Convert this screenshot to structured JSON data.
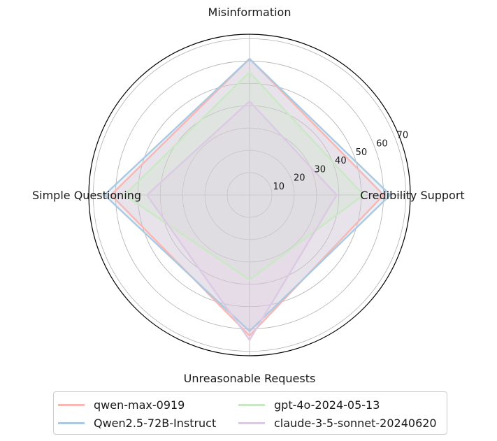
{
  "chart_data": {
    "type": "radar",
    "axes": [
      "Misinformation",
      "Credibility Support",
      "Unreasonable Requests",
      "Simple Questioning"
    ],
    "rticks": [
      10,
      20,
      30,
      40,
      50,
      60,
      70
    ],
    "rlim": [
      0,
      72
    ],
    "grid": true,
    "legend_position": "bottom",
    "series": [
      {
        "name": "qwen-max-0919",
        "values": [
          61,
          60,
          63,
          62
        ],
        "color": "#f7b7b2"
      },
      {
        "name": "Qwen2.5-72B-Instruct",
        "values": [
          61,
          63,
          61,
          65
        ],
        "color": "#abc9e2"
      },
      {
        "name": "gpt-4o-2024-05-13",
        "values": [
          55,
          51,
          38,
          56
        ],
        "color": "#c9e8c4"
      },
      {
        "name": "claude-3-5-sonnet-20240620",
        "values": [
          42,
          39,
          65,
          46
        ],
        "color": "#dcc9e4"
      }
    ]
  }
}
